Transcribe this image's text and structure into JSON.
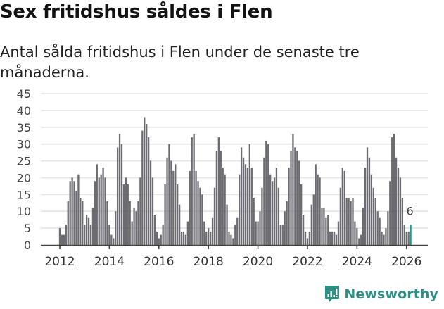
{
  "header": {
    "title": "Sex fritidshus såldes i Flen",
    "subtitle": "Antal sålda fritidshus i Flen under de senaste tre månaderna."
  },
  "footer": {
    "brand": "Newsworthy",
    "brand_icon": "speech-bubble-bar-chart-icon"
  },
  "colors": {
    "bar": "#6c6b71",
    "highlight": "#1b9e90",
    "grid": "#e4e4e4",
    "axis": "#444444",
    "brand": "#2e8f84"
  },
  "chart_data": {
    "type": "bar",
    "title": "Sex fritidshus såldes i Flen",
    "subtitle": "Antal sålda fritidshus i Flen under de senaste tre månaderna.",
    "xlabel": "",
    "ylabel": "",
    "ylim": [
      0,
      45
    ],
    "yticks": [
      0,
      5,
      10,
      15,
      20,
      25,
      30,
      35,
      40,
      45
    ],
    "xtick_labels": [
      "2012",
      "2014",
      "2016",
      "2018",
      "2020",
      "2022",
      "2024",
      "2026"
    ],
    "grid": true,
    "legend": null,
    "start": "2012-01",
    "frequency": "monthly",
    "highlight_last": true,
    "annotation": {
      "label": "6",
      "target": "last"
    },
    "series": [
      {
        "name": "Antal sålda fritidshus",
        "values": [
          5,
          3,
          3,
          6,
          13,
          19,
          20,
          19,
          16,
          21,
          14,
          13,
          6,
          9,
          8,
          6,
          11,
          19,
          24,
          20,
          21,
          23,
          20,
          13,
          6,
          3,
          2,
          10,
          29,
          33,
          30,
          18,
          20,
          18,
          13,
          7,
          11,
          10,
          13,
          20,
          34,
          38,
          36,
          32,
          25,
          20,
          9,
          4,
          2,
          3,
          6,
          18,
          26,
          30,
          25,
          22,
          24,
          18,
          12,
          4,
          4,
          3,
          7,
          22,
          32,
          33,
          22,
          19,
          17,
          15,
          7,
          4,
          5,
          4,
          8,
          17,
          28,
          32,
          28,
          23,
          21,
          12,
          4,
          3,
          2,
          6,
          8,
          21,
          29,
          26,
          24,
          23,
          30,
          23,
          14,
          7,
          7,
          10,
          17,
          26,
          31,
          30,
          21,
          19,
          20,
          23,
          17,
          6,
          6,
          10,
          13,
          23,
          28,
          33,
          29,
          28,
          25,
          18,
          9,
          4,
          2,
          4,
          12,
          15,
          24,
          21,
          20,
          11,
          11,
          8,
          9,
          4,
          4,
          4,
          3,
          7,
          17,
          23,
          22,
          14,
          14,
          13,
          14,
          7,
          5,
          2,
          3,
          11,
          23,
          29,
          26,
          21,
          17,
          14,
          10,
          8,
          4,
          3,
          5,
          10,
          19,
          32,
          33,
          26,
          23,
          20,
          14,
          6,
          4,
          4,
          6
        ]
      }
    ]
  }
}
